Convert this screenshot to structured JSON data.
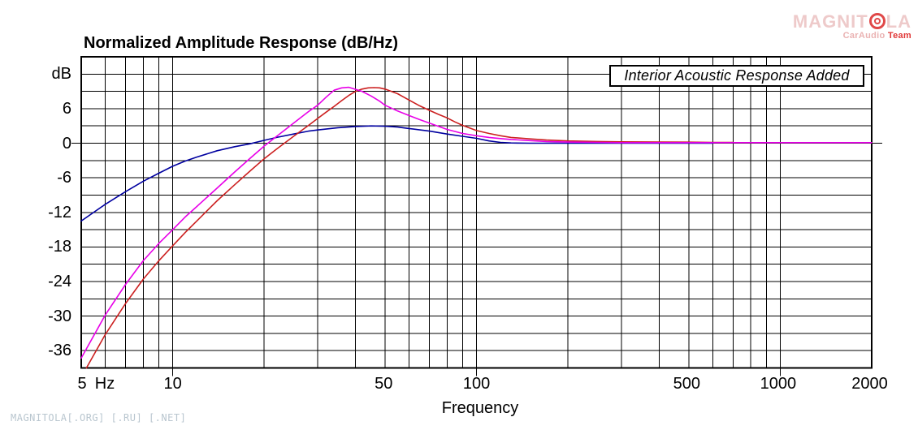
{
  "chart_data": {
    "type": "line",
    "title": "Normalized Amplitude Response (dB/Hz)",
    "xlabel": "Frequency",
    "x_unit": "Hz",
    "ylabel_unit": "dB",
    "x_scale": "log",
    "xlim": [
      5,
      2000
    ],
    "ylim": [
      -39,
      15
    ],
    "grid": true,
    "grid_color": "#000000",
    "y_gridline_step_db": 3,
    "y_tick_labels": [
      "6",
      "0",
      "-6",
      "-12",
      "-18",
      "-24",
      "-30",
      "-36"
    ],
    "y_tick_values": [
      6,
      0,
      -6,
      -12,
      -18,
      -24,
      -30,
      -36
    ],
    "x_tick_labels": [
      "5",
      "10",
      "50",
      "100",
      "500",
      "1000",
      "2000"
    ],
    "x_tick_values": [
      5,
      10,
      50,
      100,
      500,
      1000,
      2000
    ],
    "x_gridlines": [
      6,
      7,
      8,
      9,
      10,
      20,
      30,
      40,
      50,
      60,
      70,
      80,
      90,
      100,
      200,
      300,
      400,
      500,
      600,
      700,
      800,
      900,
      1000
    ],
    "x_major_ticks": [
      10,
      100,
      1000
    ],
    "legend": "Interior Acoustic Response Added",
    "legend_position": "top-right",
    "series": [
      {
        "name": "blue-response",
        "color": "#0000A0",
        "points": [
          [
            5,
            -13.5
          ],
          [
            6,
            -10.6
          ],
          [
            7,
            -8.4
          ],
          [
            8,
            -6.6
          ],
          [
            9,
            -5.2
          ],
          [
            10,
            -4.0
          ],
          [
            11,
            -3.1
          ],
          [
            12,
            -2.4
          ],
          [
            14,
            -1.3
          ],
          [
            16,
            -0.6
          ],
          [
            18,
            -0.1
          ],
          [
            20,
            0.5
          ],
          [
            22,
            1.0
          ],
          [
            25,
            1.6
          ],
          [
            28,
            2.1
          ],
          [
            30,
            2.3
          ],
          [
            35,
            2.7
          ],
          [
            40,
            2.9
          ],
          [
            45,
            3.0
          ],
          [
            50,
            2.95
          ],
          [
            55,
            2.8
          ],
          [
            60,
            2.55
          ],
          [
            70,
            2.1
          ],
          [
            80,
            1.6
          ],
          [
            90,
            1.2
          ],
          [
            100,
            0.85
          ],
          [
            110,
            0.4
          ],
          [
            120,
            0.15
          ],
          [
            130,
            0.05
          ],
          [
            150,
            0.0
          ],
          [
            200,
            0.0
          ],
          [
            300,
            0.0
          ],
          [
            450,
            0.0
          ],
          [
            600,
            0.0
          ]
        ]
      },
      {
        "name": "red-response",
        "color": "#CC2020",
        "points": [
          [
            5.2,
            -39.0
          ],
          [
            6,
            -33.2
          ],
          [
            7,
            -27.8
          ],
          [
            8,
            -23.6
          ],
          [
            9,
            -20.4
          ],
          [
            10,
            -17.8
          ],
          [
            11,
            -15.5
          ],
          [
            12,
            -13.5
          ],
          [
            14,
            -10.0
          ],
          [
            16,
            -7.2
          ],
          [
            18,
            -4.8
          ],
          [
            20,
            -2.7
          ],
          [
            22,
            -1.0
          ],
          [
            25,
            1.2
          ],
          [
            28,
            3.1
          ],
          [
            30,
            4.3
          ],
          [
            32,
            5.4
          ],
          [
            34,
            6.4
          ],
          [
            36,
            7.4
          ],
          [
            38,
            8.3
          ],
          [
            40,
            9.0
          ],
          [
            42,
            9.4
          ],
          [
            44,
            9.6
          ],
          [
            46,
            9.65
          ],
          [
            48,
            9.6
          ],
          [
            50,
            9.4
          ],
          [
            55,
            8.6
          ],
          [
            60,
            7.5
          ],
          [
            65,
            6.5
          ],
          [
            70,
            5.7
          ],
          [
            75,
            5.0
          ],
          [
            80,
            4.4
          ],
          [
            85,
            3.7
          ],
          [
            90,
            3.1
          ],
          [
            100,
            2.2
          ],
          [
            110,
            1.7
          ],
          [
            120,
            1.3
          ],
          [
            130,
            1.0
          ],
          [
            150,
            0.75
          ],
          [
            170,
            0.55
          ],
          [
            200,
            0.4
          ],
          [
            250,
            0.3
          ],
          [
            300,
            0.25
          ],
          [
            400,
            0.2
          ],
          [
            500,
            0.18
          ],
          [
            600,
            0.15
          ],
          [
            700,
            0.15
          ]
        ]
      },
      {
        "name": "magenta-response",
        "color": "#E800E8",
        "points": [
          [
            5,
            -37.3
          ],
          [
            6,
            -29.8
          ],
          [
            7,
            -24.5
          ],
          [
            8,
            -20.4
          ],
          [
            9,
            -17.4
          ],
          [
            10,
            -15.0
          ],
          [
            11,
            -12.8
          ],
          [
            12,
            -11.0
          ],
          [
            14,
            -7.8
          ],
          [
            16,
            -5.0
          ],
          [
            18,
            -2.6
          ],
          [
            20,
            -0.5
          ],
          [
            22,
            1.2
          ],
          [
            25,
            3.5
          ],
          [
            28,
            5.5
          ],
          [
            30,
            6.6
          ],
          [
            32,
            8.0
          ],
          [
            34,
            9.2
          ],
          [
            36,
            9.6
          ],
          [
            38,
            9.7
          ],
          [
            40,
            9.35
          ],
          [
            42,
            9.0
          ],
          [
            45,
            8.2
          ],
          [
            48,
            7.3
          ],
          [
            50,
            6.6
          ],
          [
            55,
            5.6
          ],
          [
            60,
            4.8
          ],
          [
            65,
            4.1
          ],
          [
            70,
            3.5
          ],
          [
            80,
            2.4
          ],
          [
            90,
            1.7
          ],
          [
            100,
            1.3
          ],
          [
            110,
            1.0
          ],
          [
            120,
            0.8
          ],
          [
            130,
            0.65
          ],
          [
            150,
            0.45
          ],
          [
            170,
            0.3
          ],
          [
            200,
            0.2
          ],
          [
            250,
            0.15
          ],
          [
            300,
            0.1
          ],
          [
            400,
            0.1
          ],
          [
            500,
            0.1
          ],
          [
            700,
            0.1
          ],
          [
            1000,
            0.1
          ],
          [
            1500,
            0.1
          ],
          [
            2000,
            0.1
          ]
        ]
      }
    ]
  },
  "watermark": {
    "logo_part1": "MAGNIT",
    "logo_part2": "LA",
    "sub_brand": "CarAudio",
    "sub_team": "Team",
    "footer": "MAGNITOLA[.ORG] [.RU] [.NET]"
  }
}
